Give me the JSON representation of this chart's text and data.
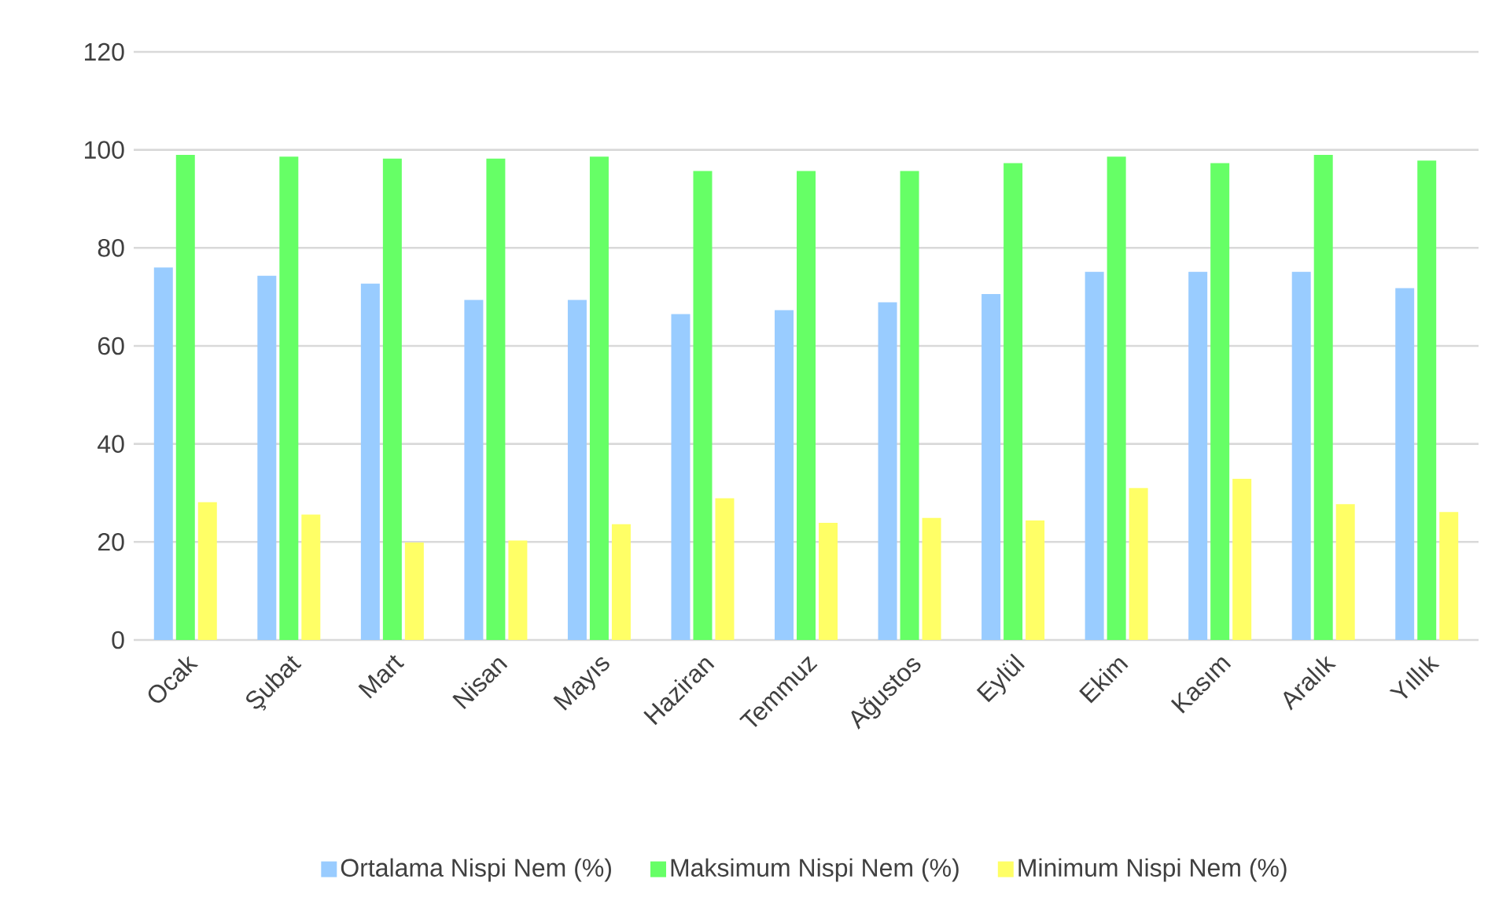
{
  "chart_data": {
    "type": "bar",
    "categories": [
      "Ocak",
      "Şubat",
      "Mart",
      "Nisan",
      "Mayıs",
      "Haziran",
      "Temmuz",
      "Ağustos",
      "Eylül",
      "Ekim",
      "Kasım",
      "Aralık",
      "Yıllık"
    ],
    "series": [
      {
        "name": "Ortalama Nispi Nem (%)",
        "color": "#99ccff",
        "values": [
          76.0,
          74.3,
          72.7,
          69.4,
          69.4,
          66.5,
          67.3,
          68.9,
          70.6,
          75.1,
          75.1,
          75.1,
          71.8
        ]
      },
      {
        "name": "Maksimum Nispi Nem (%)",
        "color": "#66ff66",
        "values": [
          99.0,
          98.6,
          98.2,
          98.2,
          98.6,
          95.7,
          95.7,
          95.7,
          97.3,
          98.6,
          97.3,
          99.0,
          97.8
        ]
      },
      {
        "name": "Minimum Nispi Nem (%)",
        "color": "#ffff66",
        "values": [
          28.1,
          25.6,
          19.9,
          20.3,
          23.6,
          28.9,
          23.9,
          24.9,
          24.4,
          31.0,
          32.9,
          27.7,
          26.1
        ]
      }
    ],
    "ylim": [
      0,
      120
    ],
    "yticks": [
      0,
      20,
      40,
      60,
      80,
      100,
      120
    ],
    "grid": "y",
    "legend": "bottom"
  }
}
